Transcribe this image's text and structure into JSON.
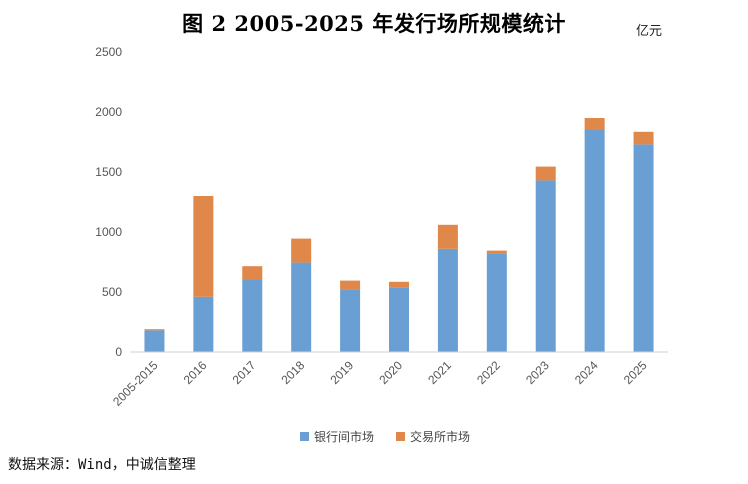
{
  "title": "图 2  2005-2025 年发行场所规模统计",
  "unit": "亿元",
  "source": "数据来源：Wind，中诚信整理",
  "chart_data": {
    "type": "bar",
    "stacked": true,
    "categories": [
      "2005-2015",
      "2016",
      "2017",
      "2018",
      "2019",
      "2020",
      "2021",
      "2022",
      "2023",
      "2024",
      "2025"
    ],
    "series": [
      {
        "name": "银行间市场",
        "color": "#6A9FD4",
        "values": [
          180,
          460,
          600,
          745,
          520,
          540,
          860,
          820,
          1430,
          1850,
          1730
        ]
      },
      {
        "name": "交易所市场",
        "color": "#E0874A",
        "values": [
          10,
          840,
          115,
          200,
          75,
          45,
          200,
          25,
          115,
          100,
          105
        ]
      }
    ],
    "ylim": [
      0,
      2500
    ],
    "yticks": [
      0,
      500,
      1000,
      1500,
      2000,
      2500
    ],
    "xlabel": "",
    "ylabel": "",
    "grid": false,
    "legend": "bottom"
  }
}
